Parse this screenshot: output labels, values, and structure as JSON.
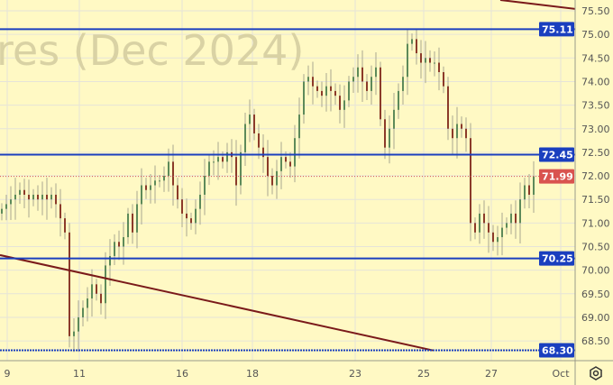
{
  "chart_data": {
    "type": "candlestick",
    "watermark": "res (Dec 2024)",
    "ylim": [
      68.2,
      75.7
    ],
    "y_ticks": [
      "68.50",
      "69.00",
      "69.50",
      "70.00",
      "70.50",
      "71.00",
      "71.50",
      "72.00",
      "72.50",
      "73.00",
      "73.50",
      "74.00",
      "74.50",
      "75.00",
      "75.50"
    ],
    "x_ticks": [
      {
        "label": "9",
        "index": 1.6
      },
      {
        "label": "11",
        "index": 17.6
      },
      {
        "label": "16",
        "index": 40.4
      },
      {
        "label": "18",
        "index": 56
      },
      {
        "label": "23",
        "index": 78.8
      },
      {
        "label": "25",
        "index": 94
      },
      {
        "label": "27",
        "index": 109
      },
      {
        "label": "Oct",
        "index": 124.4
      }
    ],
    "closes": [
      71.3,
      71.4,
      71.5,
      71.6,
      71.7,
      71.6,
      71.5,
      71.6,
      71.5,
      71.6,
      71.5,
      71.6,
      71.4,
      71.1,
      70.8,
      68.6,
      68.7,
      69.0,
      69.2,
      69.4,
      69.7,
      69.5,
      69.3,
      70.1,
      70.3,
      70.6,
      70.5,
      70.7,
      71.2,
      70.8,
      71.4,
      71.8,
      71.7,
      71.8,
      71.9,
      71.9,
      72.0,
      72.3,
      71.8,
      71.5,
      71.2,
      71.1,
      71.0,
      71.3,
      71.6,
      72.0,
      72.3,
      72.3,
      72.4,
      72.3,
      72.5,
      72.4,
      71.8,
      72.5,
      73.1,
      73.3,
      72.9,
      72.6,
      72.4,
      72.0,
      71.8,
      72.1,
      72.4,
      72.3,
      72.2,
      72.8,
      73.3,
      74.0,
      74.1,
      73.9,
      73.8,
      73.7,
      73.9,
      73.8,
      73.7,
      73.4,
      73.6,
      74.0,
      74.1,
      74.3,
      74.0,
      73.8,
      74.1,
      74.3,
      73.2,
      72.6,
      73.0,
      73.4,
      73.8,
      74.1,
      74.8,
      74.9,
      74.6,
      74.4,
      74.5,
      74.4,
      74.4,
      74.2,
      73.9,
      73.0,
      72.8,
      73.1,
      73.0,
      72.8,
      71.0,
      70.8,
      71.2,
      71.0,
      70.8,
      70.6,
      70.7,
      70.9,
      71.0,
      71.2,
      71.0,
      71.5,
      71.8,
      71.6,
      71.99
    ],
    "levels": [
      {
        "value": 75.11,
        "label": "75.11",
        "style": "solid"
      },
      {
        "value": 72.45,
        "label": "72.45",
        "style": "solid"
      },
      {
        "value": 70.25,
        "label": "70.25",
        "style": "solid"
      },
      {
        "value": 68.3,
        "label": "68.30",
        "style": "dotted"
      }
    ],
    "last_price": {
      "value": 71.99,
      "label": "71.99"
    },
    "trendlines": [
      {
        "from": {
          "index": 0,
          "price": 70.32
        },
        "to": {
          "index": 96,
          "price": 68.3
        }
      },
      {
        "from": {
          "index": 111,
          "price": 75.73
        },
        "to": {
          "index": 127.6,
          "price": 75.54
        }
      }
    ],
    "colors": {
      "background": "#fff9c4",
      "up": "#5d8a5a",
      "down": "#8b3a2a",
      "level": "#1a3fbf",
      "last": "#d9534f",
      "trend": "#7a1a1a",
      "grid": "#e6e4d8"
    }
  },
  "settings_icon": "gear-icon"
}
